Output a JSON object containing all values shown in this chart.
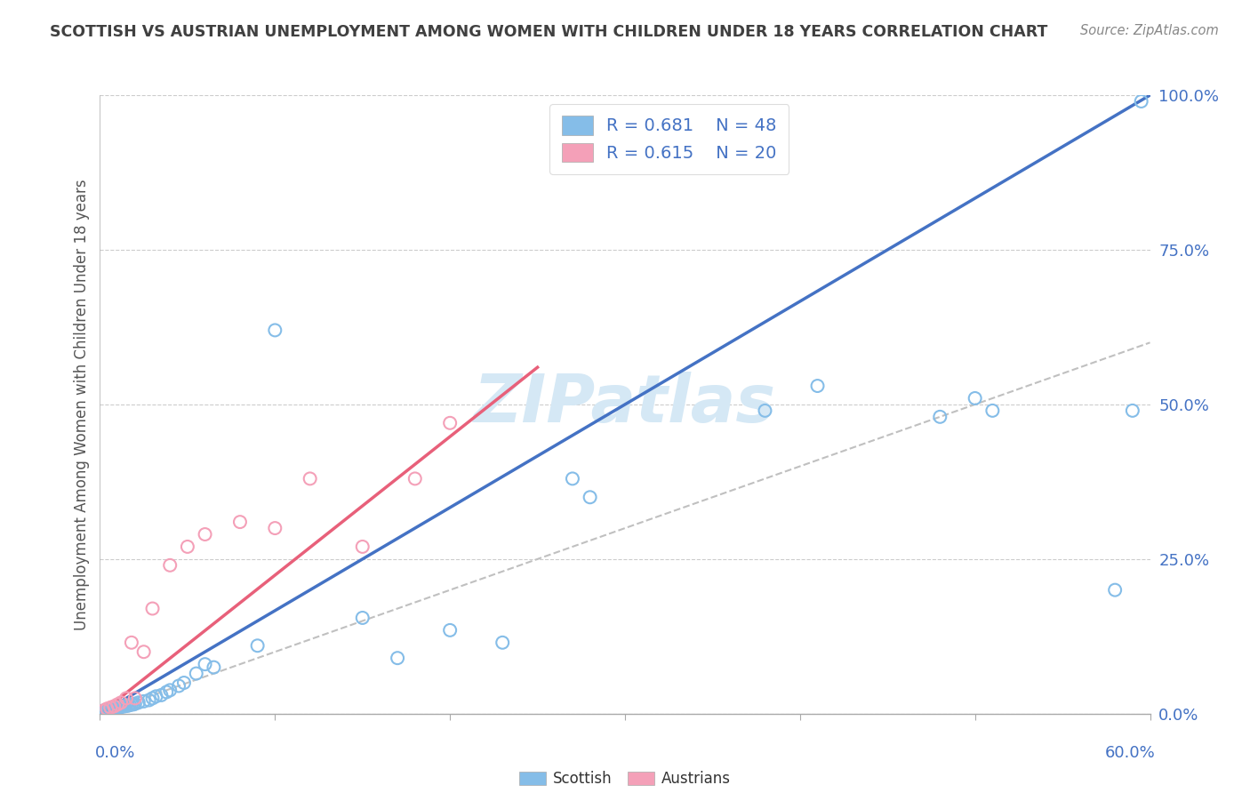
{
  "title": "SCOTTISH VS AUSTRIAN UNEMPLOYMENT AMONG WOMEN WITH CHILDREN UNDER 18 YEARS CORRELATION CHART",
  "source": "Source: ZipAtlas.com",
  "ylabel": "Unemployment Among Women with Children Under 18 years",
  "xlim": [
    0.0,
    0.6
  ],
  "ylim": [
    0.0,
    1.0
  ],
  "yticks": [
    0.0,
    0.25,
    0.5,
    0.75,
    1.0
  ],
  "ytick_labels": [
    "0.0%",
    "25.0%",
    "50.0%",
    "75.0%",
    "100.0%"
  ],
  "xtick_positions": [
    0.0,
    0.1,
    0.2,
    0.3,
    0.4,
    0.5,
    0.6
  ],
  "legend_R_scottish": "R = 0.681",
  "legend_N_scottish": "N = 48",
  "legend_R_austrians": "R = 0.615",
  "legend_N_austrians": "N = 20",
  "scottish_color": "#85BDE8",
  "austrians_color": "#F4A0B8",
  "scottish_line_color": "#4472C4",
  "austrians_line_color": "#E8607A",
  "ref_line_color": "#C0C0C0",
  "title_color": "#404040",
  "axis_label_color": "#4472C4",
  "legend_text_color": "#4472C4",
  "watermark_color": "#D5E8F5",
  "scottish_x": [
    0.002,
    0.003,
    0.004,
    0.005,
    0.006,
    0.007,
    0.008,
    0.009,
    0.01,
    0.011,
    0.012,
    0.013,
    0.014,
    0.015,
    0.016,
    0.017,
    0.018,
    0.019,
    0.02,
    0.022,
    0.025,
    0.028,
    0.03,
    0.032,
    0.035,
    0.038,
    0.04,
    0.045,
    0.048,
    0.055,
    0.06,
    0.065,
    0.09,
    0.1,
    0.15,
    0.17,
    0.2,
    0.23,
    0.27,
    0.28,
    0.38,
    0.41,
    0.48,
    0.5,
    0.51,
    0.58,
    0.59,
    0.595
  ],
  "scottish_y": [
    0.005,
    0.005,
    0.006,
    0.006,
    0.007,
    0.007,
    0.008,
    0.008,
    0.01,
    0.01,
    0.011,
    0.012,
    0.012,
    0.013,
    0.013,
    0.014,
    0.015,
    0.015,
    0.016,
    0.018,
    0.02,
    0.022,
    0.025,
    0.028,
    0.03,
    0.035,
    0.038,
    0.045,
    0.05,
    0.065,
    0.08,
    0.075,
    0.11,
    0.62,
    0.155,
    0.09,
    0.135,
    0.115,
    0.38,
    0.35,
    0.49,
    0.53,
    0.48,
    0.51,
    0.49,
    0.2,
    0.49,
    0.99
  ],
  "austrians_x": [
    0.002,
    0.004,
    0.006,
    0.008,
    0.01,
    0.012,
    0.015,
    0.018,
    0.02,
    0.025,
    0.03,
    0.04,
    0.05,
    0.06,
    0.08,
    0.1,
    0.12,
    0.15,
    0.18,
    0.2
  ],
  "austrians_y": [
    0.005,
    0.008,
    0.01,
    0.012,
    0.015,
    0.018,
    0.025,
    0.115,
    0.025,
    0.1,
    0.17,
    0.24,
    0.27,
    0.29,
    0.31,
    0.3,
    0.38,
    0.27,
    0.38,
    0.47
  ],
  "scottish_reg": [
    0.0,
    0.6,
    0.0,
    1.0
  ],
  "austrians_reg": [
    0.0,
    0.25,
    0.0,
    0.56
  ],
  "ref_line": [
    0.0,
    0.6,
    0.0,
    0.6
  ]
}
